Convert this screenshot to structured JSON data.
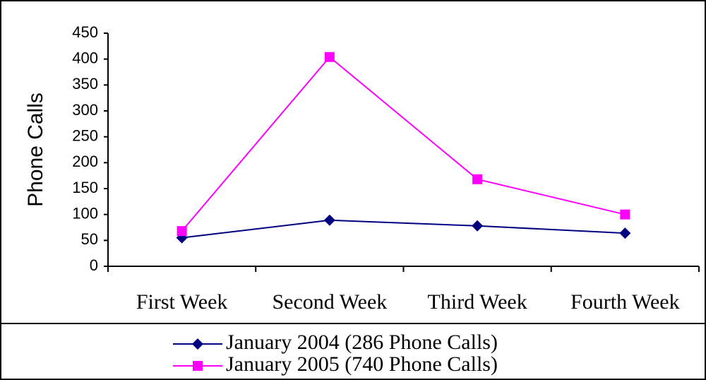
{
  "chart_data": {
    "type": "line",
    "y_label": "Phone Calls",
    "categories": [
      "First Week",
      "Second Week",
      "Third Week",
      "Fourth Week"
    ],
    "series": [
      {
        "name": "January 2004 (286 Phone Calls)",
        "color": "#000080",
        "marker": "diamond",
        "values": [
          55,
          89,
          78,
          64
        ]
      },
      {
        "name": "January 2005 (740 Phone Calls)",
        "color": "#ff00ff",
        "marker": "square",
        "values": [
          68,
          404,
          168,
          100
        ]
      }
    ],
    "ylim": [
      0,
      450
    ],
    "yticks": [
      0,
      50,
      100,
      150,
      200,
      250,
      300,
      350,
      400,
      450
    ],
    "grid": false
  }
}
